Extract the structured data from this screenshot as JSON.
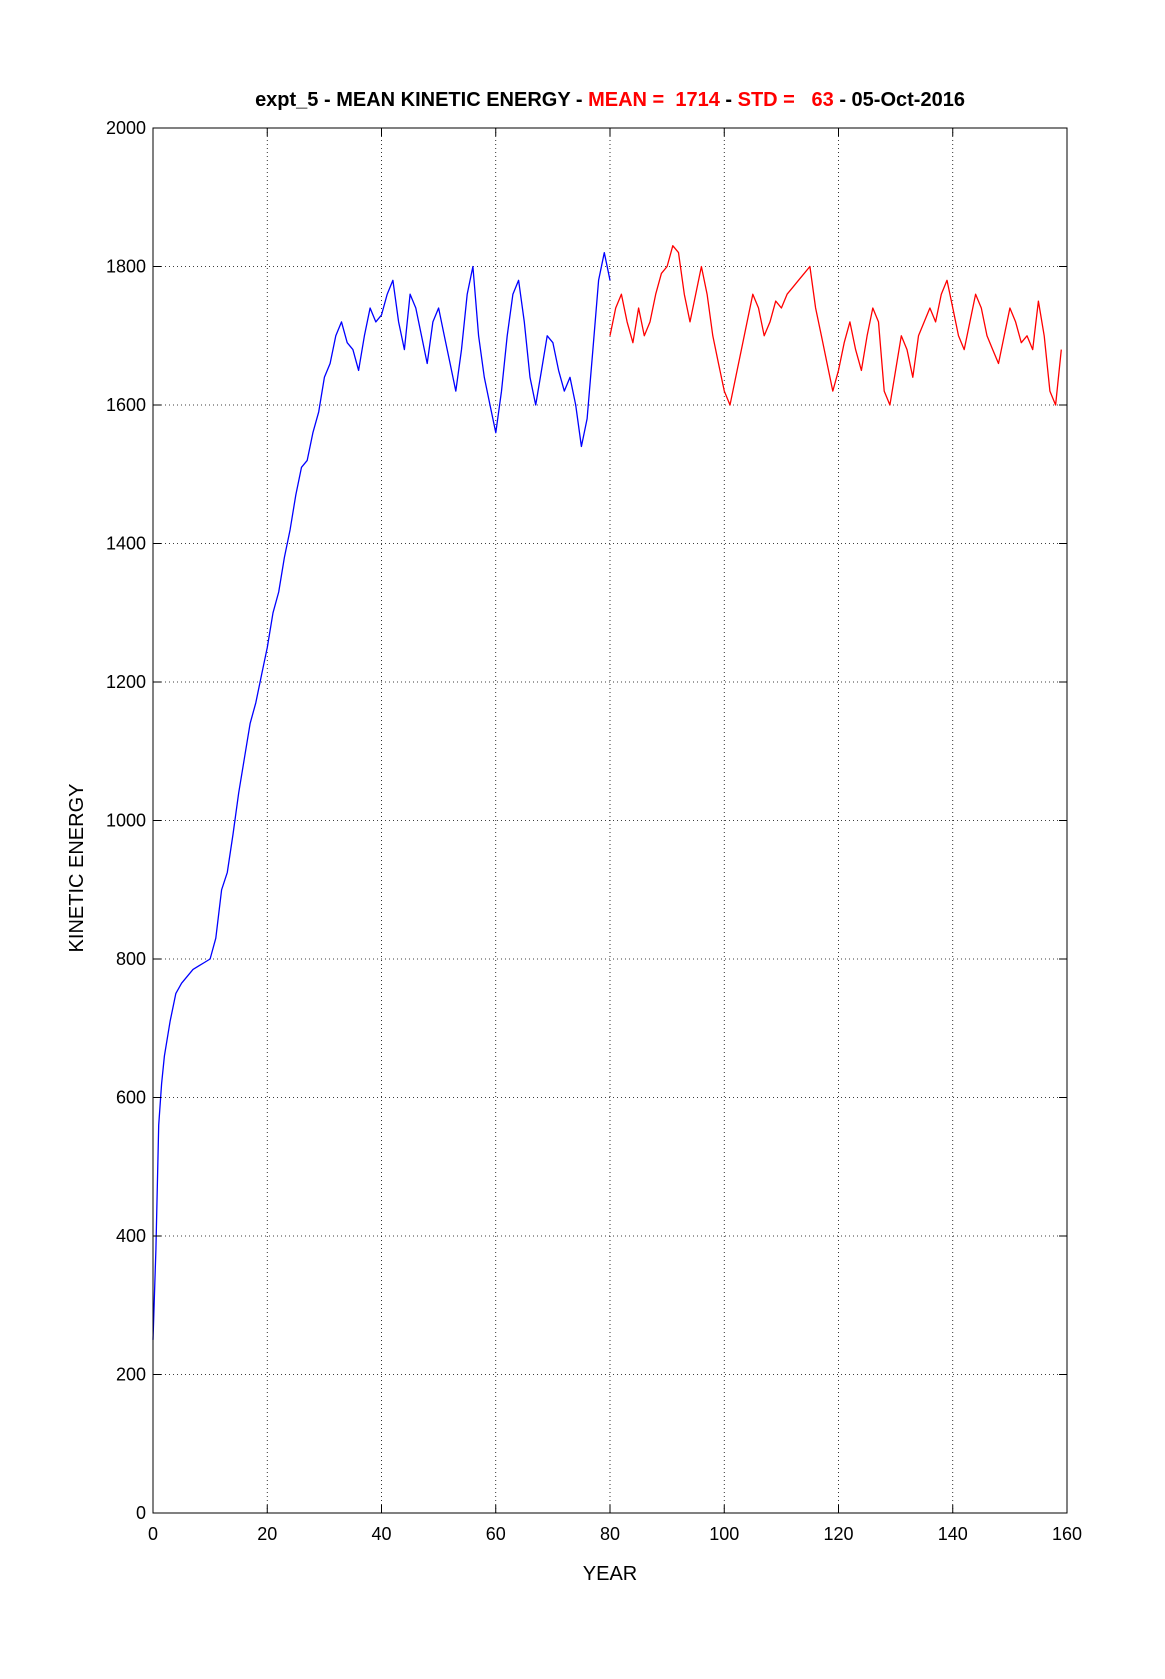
{
  "chart_data": {
    "type": "line",
    "title_parts": [
      {
        "text": "expt_5 - MEAN KINETIC ENERGY - ",
        "color": "#000000"
      },
      {
        "text": "MEAN =  1714",
        "color": "#ff0000"
      },
      {
        "text": " - ",
        "color": "#000000"
      },
      {
        "text": "STD =   63",
        "color": "#ff0000"
      },
      {
        "text": " - 05-Oct-2016",
        "color": "#000000"
      }
    ],
    "xlabel": "YEAR",
    "ylabel": "KINETIC ENERGY",
    "xlim": [
      0,
      160
    ],
    "ylim": [
      0,
      2000
    ],
    "x_ticks": [
      0,
      20,
      40,
      60,
      80,
      100,
      120,
      140,
      160
    ],
    "y_ticks": [
      0,
      200,
      400,
      600,
      800,
      1000,
      1200,
      1400,
      1600,
      1800,
      2000
    ],
    "grid": true,
    "series": [
      {
        "color": "#0000ff",
        "x": [
          0,
          0.5,
          1,
          1.5,
          2,
          3,
          4,
          5,
          6,
          7,
          8,
          9,
          10,
          11,
          12,
          13,
          14,
          15,
          16,
          17,
          18,
          19,
          20,
          21,
          22,
          23,
          24,
          25,
          26,
          27,
          28,
          29,
          30,
          31,
          32,
          33,
          34,
          35,
          36,
          37,
          38,
          39,
          40,
          41,
          42,
          43,
          44,
          45,
          46,
          47,
          48,
          49,
          50,
          51,
          52,
          53,
          54,
          55,
          56,
          57,
          58,
          59,
          60,
          61,
          62,
          63,
          64,
          65,
          66,
          67,
          68,
          69,
          70,
          71,
          72,
          73,
          74,
          75,
          76,
          77,
          78,
          79,
          80
        ],
        "y": [
          250,
          380,
          560,
          620,
          660,
          710,
          750,
          765,
          775,
          785,
          790,
          795,
          800,
          830,
          900,
          925,
          980,
          1040,
          1090,
          1140,
          1170,
          1210,
          1250,
          1300,
          1330,
          1380,
          1420,
          1470,
          1510,
          1520,
          1560,
          1590,
          1640,
          1660,
          1700,
          1720,
          1690,
          1680,
          1650,
          1700,
          1740,
          1720,
          1730,
          1760,
          1780,
          1720,
          1680,
          1760,
          1740,
          1700,
          1660,
          1720,
          1740,
          1700,
          1660,
          1620,
          1680,
          1760,
          1800,
          1700,
          1640,
          1600,
          1560,
          1620,
          1700,
          1760,
          1780,
          1720,
          1640,
          1600,
          1650,
          1700,
          1690,
          1650,
          1620,
          1640,
          1600,
          1540,
          1580,
          1680,
          1780,
          1820,
          1780
        ]
      },
      {
        "color": "#ff0000",
        "x": [
          80,
          81,
          82,
          83,
          84,
          85,
          86,
          87,
          88,
          89,
          90,
          91,
          92,
          93,
          94,
          95,
          96,
          97,
          98,
          99,
          100,
          101,
          102,
          103,
          104,
          105,
          106,
          107,
          108,
          109,
          110,
          111,
          112,
          113,
          114,
          115,
          116,
          117,
          118,
          119,
          120,
          121,
          122,
          123,
          124,
          125,
          126,
          127,
          128,
          129,
          130,
          131,
          132,
          133,
          134,
          135,
          136,
          137,
          138,
          139,
          140,
          141,
          142,
          143,
          144,
          145,
          146,
          147,
          148,
          149,
          150,
          151,
          152,
          153,
          154,
          155,
          156,
          157,
          158,
          159
        ],
        "y": [
          1700,
          1740,
          1760,
          1720,
          1690,
          1740,
          1700,
          1720,
          1760,
          1790,
          1800,
          1830,
          1820,
          1760,
          1720,
          1760,
          1800,
          1760,
          1700,
          1660,
          1620,
          1600,
          1640,
          1680,
          1720,
          1760,
          1740,
          1700,
          1720,
          1750,
          1740,
          1760,
          1770,
          1780,
          1790,
          1800,
          1740,
          1700,
          1660,
          1620,
          1650,
          1690,
          1720,
          1680,
          1650,
          1700,
          1740,
          1720,
          1620,
          1600,
          1650,
          1700,
          1680,
          1640,
          1700,
          1720,
          1740,
          1720,
          1760,
          1780,
          1740,
          1700,
          1680,
          1720,
          1760,
          1740,
          1700,
          1680,
          1660,
          1700,
          1740,
          1720,
          1690,
          1700,
          1680,
          1750,
          1700,
          1620,
          1600,
          1680
        ]
      }
    ]
  }
}
